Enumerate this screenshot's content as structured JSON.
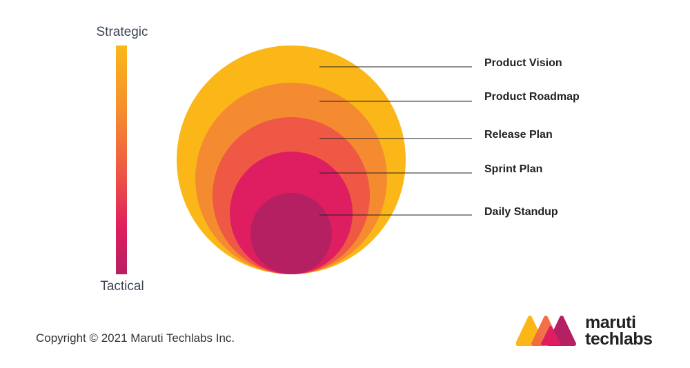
{
  "scale": {
    "top_label": "Strategic",
    "bottom_label": "Tactical"
  },
  "layers": [
    {
      "label": "Product Vision",
      "color": "#fbb718"
    },
    {
      "label": "Product Roadmap",
      "color": "#f58b30"
    },
    {
      "label": "Release Plan",
      "color": "#ee5844"
    },
    {
      "label": "Sprint Plan",
      "color": "#de1e60"
    },
    {
      "label": "Daily Standup",
      "color": "#b52062"
    }
  ],
  "footer": {
    "copyright": "Copyright © 2021 Maruti Techlabs Inc."
  },
  "brand": {
    "line1": "maruti",
    "line2": "techlabs",
    "logo_icon": "three-overlapping-peaks-logo",
    "logo_colors": [
      "#fbb718",
      "#f26a3f",
      "#de1e60",
      "#b52062"
    ]
  }
}
